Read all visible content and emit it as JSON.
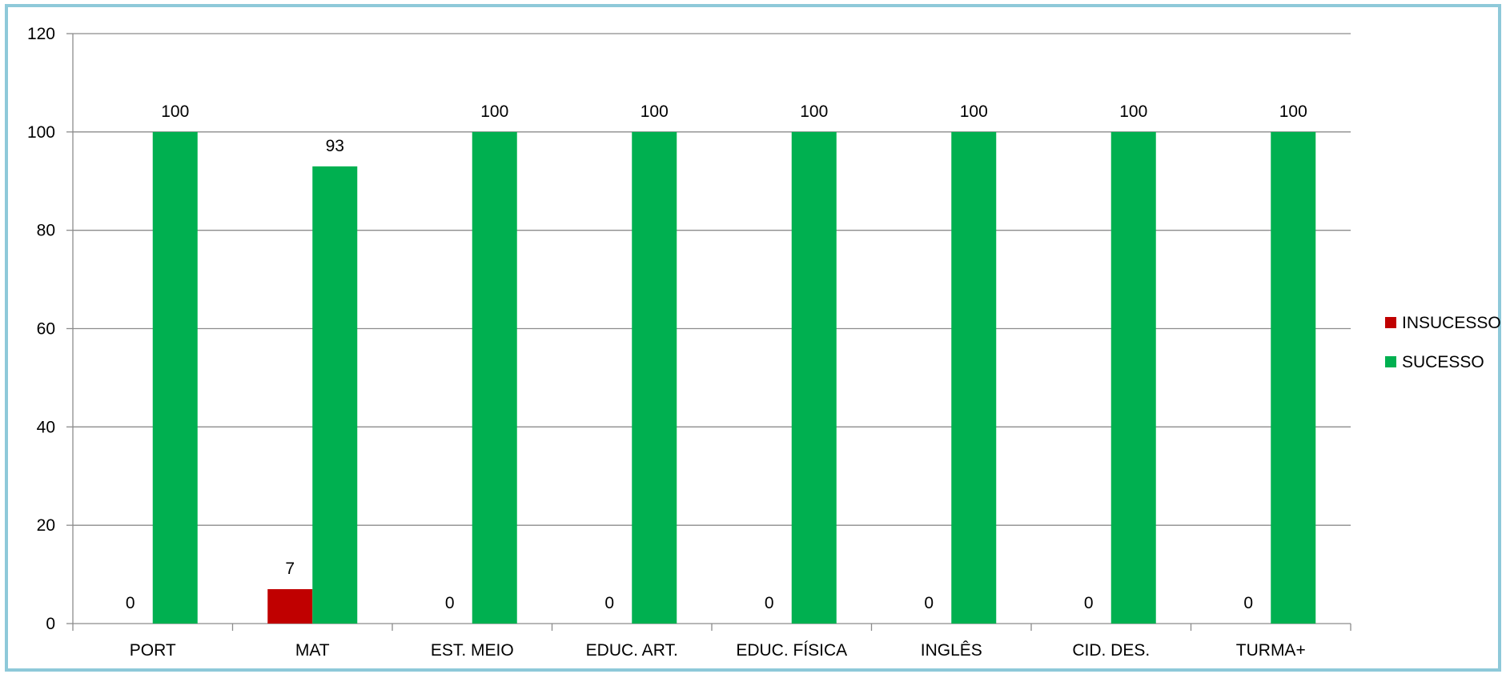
{
  "chart_data": {
    "type": "bar",
    "categories": [
      "PORT",
      "MAT",
      "EST. MEIO",
      "EDUC. ART.",
      "EDUC. FÍSICA",
      "INGLÊS",
      "CID. DES.",
      "TURMA+"
    ],
    "series": [
      {
        "name": "INSUCESSO",
        "color": "#c00000",
        "values": [
          0,
          7,
          0,
          0,
          0,
          0,
          0,
          0
        ]
      },
      {
        "name": "SUCESSO",
        "color": "#00b050",
        "values": [
          100,
          93,
          100,
          100,
          100,
          100,
          100,
          100
        ]
      }
    ],
    "ylim": [
      0,
      120
    ],
    "yticks": [
      0,
      20,
      40,
      60,
      80,
      100,
      120
    ],
    "grid": true,
    "data_labels": true,
    "legend_position": "right",
    "title": "",
    "xlabel": "",
    "ylabel": ""
  }
}
